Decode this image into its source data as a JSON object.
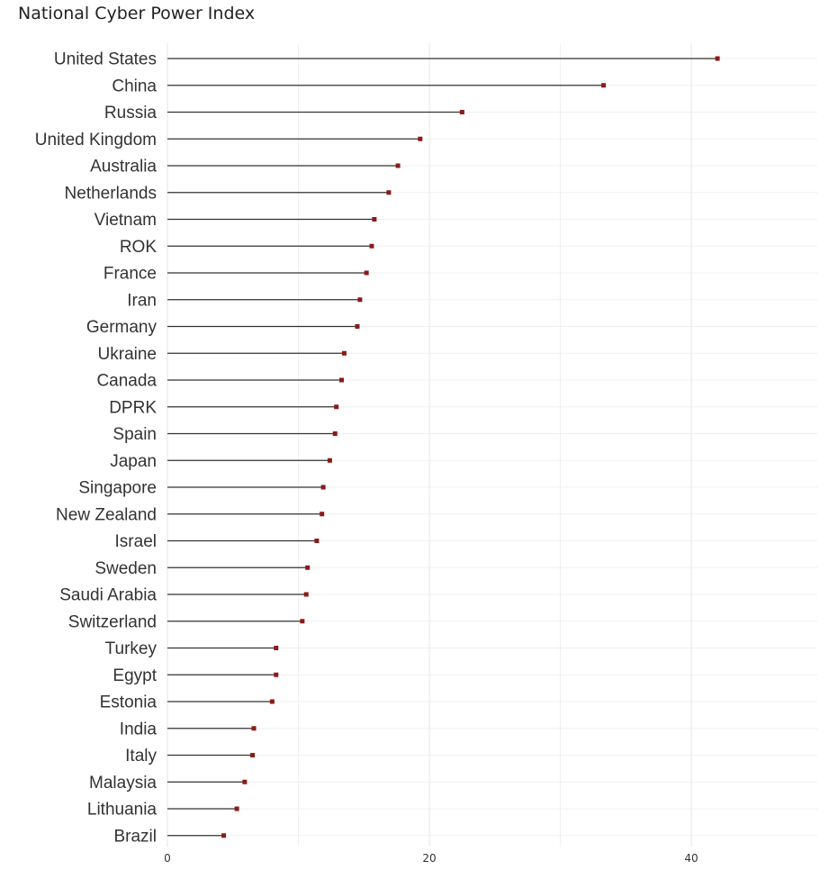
{
  "chart_data": {
    "type": "lollipop",
    "title": "National Cyber Power Index",
    "xlabel": "",
    "ylabel": "",
    "xlim": [
      0,
      50
    ],
    "xticks": [
      0,
      20,
      40
    ],
    "grid": true,
    "marker_color": "#8b1a1a",
    "line_color": "#333333",
    "categories": [
      "United States",
      "China",
      "Russia",
      "United Kingdom",
      "Australia",
      "Netherlands",
      "Vietnam",
      "ROK",
      "France",
      "Iran",
      "Germany",
      "Ukraine",
      "Canada",
      "DPRK",
      "Spain",
      "Japan",
      "Singapore",
      "New Zealand",
      "Israel",
      "Sweden",
      "Saudi Arabia",
      "Switzerland",
      "Turkey",
      "Egypt",
      "Estonia",
      "India",
      "Italy",
      "Malaysia",
      "Lithuania",
      "Brazil"
    ],
    "values": [
      42.0,
      33.3,
      22.5,
      19.3,
      17.6,
      16.9,
      15.8,
      15.6,
      15.2,
      14.7,
      14.5,
      13.5,
      13.3,
      12.9,
      12.8,
      12.4,
      11.9,
      11.8,
      11.4,
      10.7,
      10.6,
      10.3,
      8.3,
      8.3,
      8.0,
      6.6,
      6.5,
      5.9,
      5.3,
      4.3
    ]
  }
}
